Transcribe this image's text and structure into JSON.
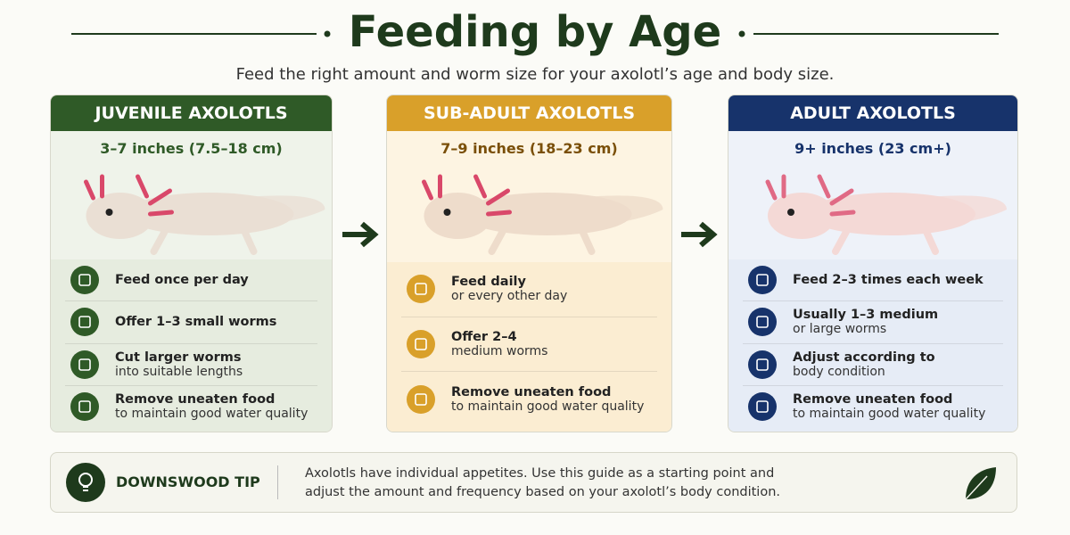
{
  "header": {
    "title": "Feeding by Age",
    "subtitle": "Feed the right amount and worm size for your axolotl’s age and body size."
  },
  "cards": [
    {
      "title": "JUVENILE AXOLOTLS",
      "size": "3–7 inches (7.5–18 cm)",
      "items": [
        {
          "bold": "Feed once per day"
        },
        {
          "bold": "Offer 1–3 small worms"
        },
        {
          "bold": "Cut larger worms",
          "text": "into suitable lengths"
        },
        {
          "bold": "Remove uneaten food",
          "text": "to maintain good water quality"
        }
      ]
    },
    {
      "title": "SUB-ADULT AXOLOTLS",
      "size": "7–9 inches (18–23 cm)",
      "items": [
        {
          "bold": "Feed daily",
          "text": "or every other day"
        },
        {
          "bold": "Offer 2–4",
          "text": "medium worms"
        },
        {
          "bold": "Remove uneaten food",
          "text": "to maintain good water quality"
        }
      ]
    },
    {
      "title": "ADULT AXOLOTLS",
      "size": "9+ inches (23 cm+)",
      "items": [
        {
          "bold": "Feed 2–3 times each week"
        },
        {
          "bold": "Usually 1–3 medium",
          "text": "or large worms"
        },
        {
          "bold": "Adjust according to",
          "text": "body condition"
        },
        {
          "bold": "Remove uneaten food",
          "text": "to maintain good water quality"
        }
      ]
    }
  ],
  "tip": {
    "label": "DOWNSWOOD TIP",
    "lines": [
      "Axolotls have individual appetites. Use this guide as a starting point and",
      "adjust the amount and frequency based on your axolotl’s body condition."
    ]
  }
}
